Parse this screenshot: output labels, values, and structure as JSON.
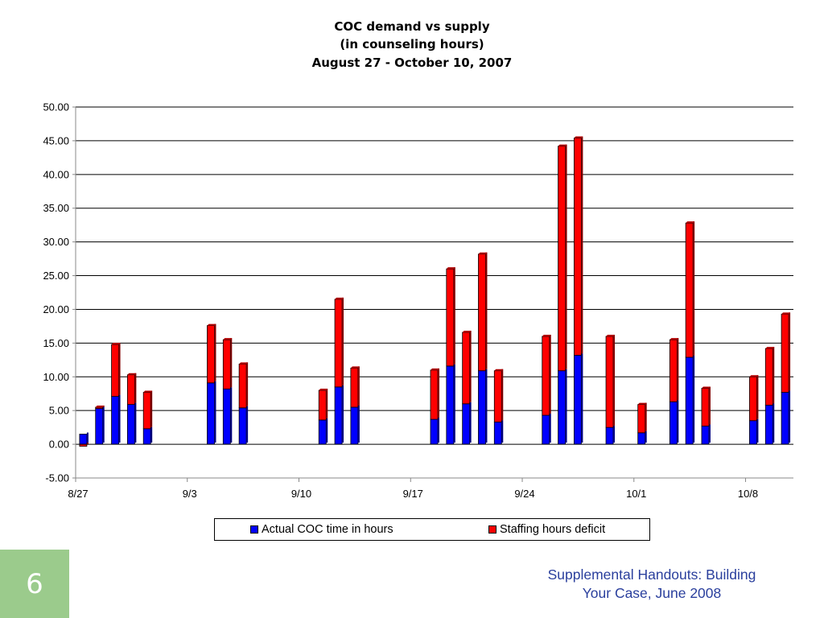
{
  "slide": {
    "page_number": "6",
    "footer_line1": "Supplemental Handouts: Building",
    "footer_line2": "Your Case, June 2008",
    "accent_color": "#9bcb8c",
    "footer_color": "#2a3f9d"
  },
  "chart_data": {
    "type": "bar",
    "stacked": true,
    "title": [
      "COC demand vs supply",
      "(in counseling hours)",
      "August 27 - October 10, 2007"
    ],
    "xlabel": "",
    "ylabel": "",
    "ylim": [
      -5,
      50
    ],
    "yticks": [
      "-5.00",
      "0.00",
      "5.00",
      "10.00",
      "15.00",
      "20.00",
      "25.00",
      "30.00",
      "35.00",
      "40.00",
      "45.00",
      "50.00"
    ],
    "x_ticks": [
      "8/27",
      "9/3",
      "9/10",
      "9/17",
      "9/24",
      "10/1",
      "10/8"
    ],
    "grid": "horizontal",
    "legend_position": "bottom",
    "series": [
      {
        "name": "Actual COC time in hours",
        "color": "#0000ff",
        "points": [
          {
            "date": "8/27",
            "value": 1.5
          },
          {
            "date": "8/28",
            "value": 5.3
          },
          {
            "date": "8/29",
            "value": 7.1
          },
          {
            "date": "8/30",
            "value": 5.9
          },
          {
            "date": "8/31",
            "value": 2.3
          },
          {
            "date": "9/4",
            "value": 9.1
          },
          {
            "date": "9/5",
            "value": 8.2
          },
          {
            "date": "9/6",
            "value": 5.4
          },
          {
            "date": "9/11",
            "value": 3.6
          },
          {
            "date": "9/12",
            "value": 8.5
          },
          {
            "date": "9/13",
            "value": 5.5
          },
          {
            "date": "9/18",
            "value": 3.7
          },
          {
            "date": "9/19",
            "value": 11.6
          },
          {
            "date": "9/20",
            "value": 6.0
          },
          {
            "date": "9/21",
            "value": 10.9
          },
          {
            "date": "9/22",
            "value": 3.3
          },
          {
            "date": "9/25",
            "value": 4.3
          },
          {
            "date": "9/26",
            "value": 10.9
          },
          {
            "date": "9/27",
            "value": 13.2
          },
          {
            "date": "9/29",
            "value": 2.5
          },
          {
            "date": "10/1",
            "value": 1.7
          },
          {
            "date": "10/3",
            "value": 6.3
          },
          {
            "date": "10/4",
            "value": 12.9
          },
          {
            "date": "10/5",
            "value": 2.7
          },
          {
            "date": "10/8",
            "value": 3.5
          },
          {
            "date": "10/9",
            "value": 5.8
          },
          {
            "date": "10/10",
            "value": 7.7
          }
        ]
      },
      {
        "name": "Staffing hours deficit",
        "color": "#ff0000",
        "points": [
          {
            "date": "8/27",
            "value": -0.3
          },
          {
            "date": "8/28",
            "value": 0.2
          },
          {
            "date": "8/29",
            "value": 7.7
          },
          {
            "date": "8/30",
            "value": 4.4
          },
          {
            "date": "8/31",
            "value": 5.4
          },
          {
            "date": "9/4",
            "value": 8.5
          },
          {
            "date": "9/5",
            "value": 7.3
          },
          {
            "date": "9/6",
            "value": 6.5
          },
          {
            "date": "9/11",
            "value": 4.4
          },
          {
            "date": "9/12",
            "value": 13.0
          },
          {
            "date": "9/13",
            "value": 5.8
          },
          {
            "date": "9/18",
            "value": 7.3
          },
          {
            "date": "9/19",
            "value": 14.4
          },
          {
            "date": "9/20",
            "value": 10.6
          },
          {
            "date": "9/21",
            "value": 17.3
          },
          {
            "date": "9/22",
            "value": 7.6
          },
          {
            "date": "9/25",
            "value": 11.7
          },
          {
            "date": "9/26",
            "value": 33.3
          },
          {
            "date": "9/27",
            "value": 32.2
          },
          {
            "date": "9/29",
            "value": 13.5
          },
          {
            "date": "10/1",
            "value": 4.2
          },
          {
            "date": "10/3",
            "value": 9.2
          },
          {
            "date": "10/4",
            "value": 19.9
          },
          {
            "date": "10/5",
            "value": 5.6
          },
          {
            "date": "10/8",
            "value": 6.5
          },
          {
            "date": "10/9",
            "value": 8.4
          },
          {
            "date": "10/10",
            "value": 11.6
          }
        ]
      }
    ]
  }
}
